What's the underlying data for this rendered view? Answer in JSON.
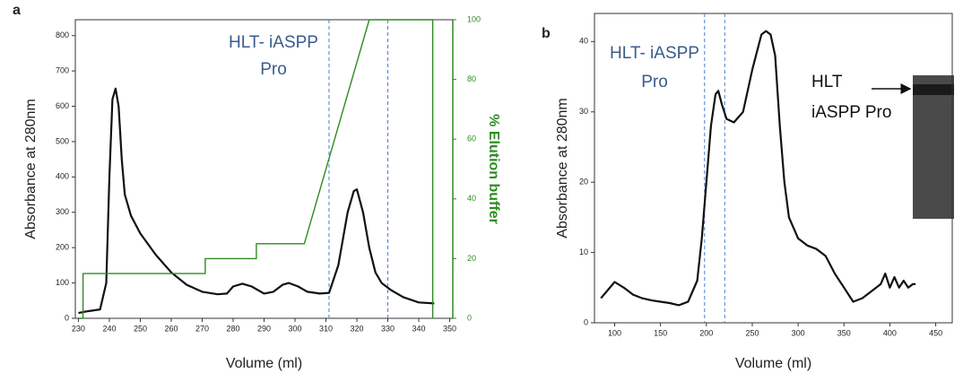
{
  "chart_data": [
    {
      "type": "line",
      "panel_label": "a",
      "xlabel": "Volume (ml)",
      "ylabel": "Absorbance at 280nm",
      "y2label": "% Elution buffer",
      "y2color": "#2e8b22",
      "xlim": [
        229,
        351
      ],
      "xticks": [
        230,
        240,
        250,
        260,
        270,
        280,
        290,
        300,
        310,
        320,
        330,
        340,
        350
      ],
      "ylim": [
        0,
        845
      ],
      "yticks": [
        0,
        100,
        200,
        300,
        400,
        500,
        600,
        700,
        800
      ],
      "y2lim": [
        0,
        100
      ],
      "y2ticks": [
        0,
        20,
        40,
        60,
        80,
        100
      ],
      "annotations": [
        "HLT- iASPP",
        "Pro"
      ],
      "vlines": [
        311,
        330
      ],
      "series": [
        {
          "color": "#111111",
          "x": [
            230,
            233,
            237,
            239,
            240,
            241,
            242,
            243,
            244,
            245,
            247,
            250,
            255,
            260,
            265,
            270,
            275,
            278,
            280,
            283,
            286,
            290,
            293,
            296,
            298,
            301,
            304,
            308,
            311,
            314,
            317,
            319,
            320,
            322,
            324,
            326,
            328,
            331,
            335,
            340,
            345
          ],
          "values": [
            15,
            20,
            25,
            100,
            400,
            620,
            650,
            600,
            450,
            350,
            290,
            240,
            180,
            130,
            95,
            75,
            68,
            70,
            90,
            98,
            90,
            70,
            75,
            95,
            100,
            90,
            75,
            70,
            72,
            150,
            300,
            360,
            365,
            300,
            200,
            130,
            100,
            80,
            60,
            45,
            42
          ]
        },
        {
          "color": "#2e8b22",
          "axis": "y2",
          "x": [
            230,
            231.5,
            231.5,
            271,
            271,
            287.5,
            287.5,
            303,
            324,
            344.5,
            344.5
          ],
          "values": [
            0,
            0,
            15,
            15,
            20,
            20,
            25,
            25,
            100,
            100,
            0
          ]
        }
      ]
    },
    {
      "type": "line",
      "panel_label": "b",
      "xlabel": "Volume (ml)",
      "ylabel": "Absorbance at 280nm",
      "xlim": [
        78,
        468
      ],
      "xticks": [
        100,
        150,
        200,
        250,
        300,
        350,
        400,
        450
      ],
      "ylim": [
        0,
        44
      ],
      "yticks": [
        0,
        10,
        20,
        30,
        40
      ],
      "annotations": [
        "HLT- iASPP",
        "Pro",
        "HLT",
        "iASPP Pro"
      ],
      "vlines": [
        198,
        220
      ],
      "series": [
        {
          "color": "#111111",
          "x": [
            85,
            100,
            110,
            120,
            130,
            140,
            150,
            160,
            170,
            180,
            190,
            195,
            200,
            205,
            210,
            213,
            217,
            222,
            230,
            240,
            250,
            260,
            265,
            270,
            275,
            280,
            285,
            290,
            300,
            310,
            320,
            330,
            340,
            350,
            360,
            370,
            380,
            390,
            395,
            400,
            405,
            410,
            415,
            420,
            425,
            428
          ],
          "values": [
            3.5,
            5.8,
            5,
            4,
            3.5,
            3.2,
            3,
            2.8,
            2.5,
            3,
            6,
            12,
            20,
            28,
            32.5,
            33,
            31,
            29,
            28.5,
            30,
            36,
            41,
            41.5,
            41,
            38,
            28,
            20,
            15,
            12,
            11,
            10.5,
            9.5,
            7,
            5,
            3,
            3.5,
            4.5,
            5.5,
            7,
            5,
            6.5,
            5,
            6,
            5,
            5.5,
            5.5
          ]
        }
      ]
    }
  ]
}
